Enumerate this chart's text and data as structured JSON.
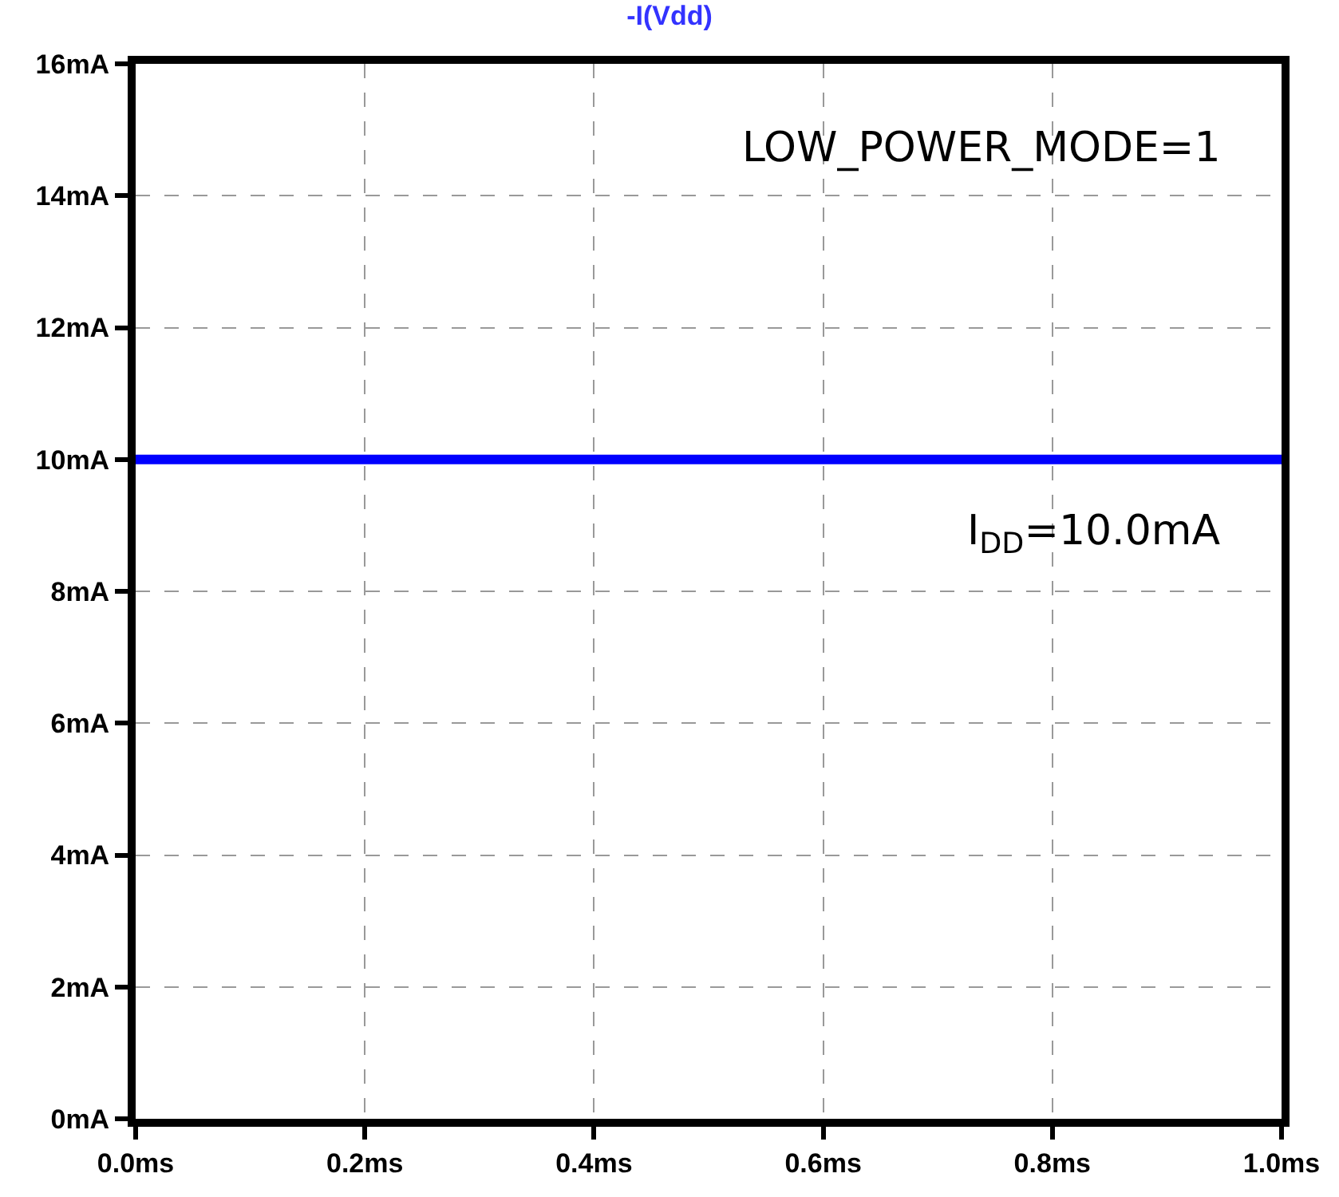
{
  "chart_data": {
    "type": "line",
    "title": "-I(Vdd)",
    "x": [
      0,
      1.0
    ],
    "series": [
      {
        "color": "#0000ff",
        "values": [
          10,
          10
        ]
      }
    ],
    "xlim": [
      0,
      1.0
    ],
    "xticks": [
      {
        "value": 0,
        "label": "0.0ms"
      },
      {
        "value": 0.2,
        "label": "0.2ms"
      },
      {
        "value": 0.4,
        "label": "0.4ms"
      },
      {
        "value": 0.6,
        "label": "0.6ms"
      },
      {
        "value": 0.8,
        "label": "0.8ms"
      },
      {
        "value": 1.0,
        "label": "1.0ms"
      }
    ],
    "ylim": [
      0,
      16
    ],
    "yticks": [
      {
        "value": 0,
        "label": "0mA"
      },
      {
        "value": 2,
        "label": "2mA"
      },
      {
        "value": 4,
        "label": "4mA"
      },
      {
        "value": 6,
        "label": "6mA"
      },
      {
        "value": 8,
        "label": "8mA"
      },
      {
        "value": 10,
        "label": "10mA"
      },
      {
        "value": 12,
        "label": "12mA"
      },
      {
        "value": 14,
        "label": "14mA"
      },
      {
        "value": 16,
        "label": "16mA"
      }
    ],
    "grid": true,
    "line_style": "solid",
    "annotations": [
      "LOW_POWER_MODE=1",
      "I$_{DD}$=10.0mA"
    ]
  }
}
